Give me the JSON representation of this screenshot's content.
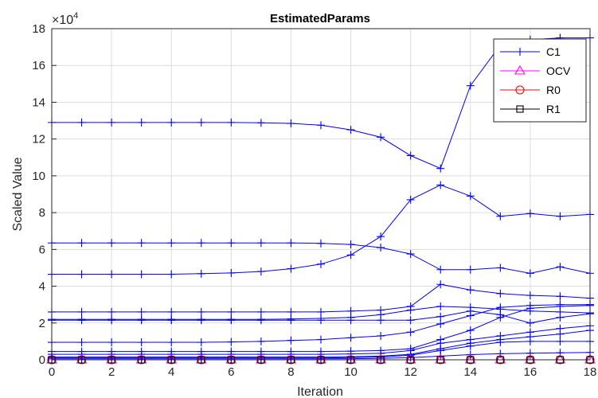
{
  "chart_data": {
    "type": "line",
    "title": "EstimatedParams",
    "xlabel": "Iteration",
    "ylabel": "Scaled Value",
    "exponent_label": "×10",
    "exponent_power": "4",
    "y_scale_factor": 10000,
    "xlim": [
      0,
      18
    ],
    "ylim": [
      0,
      18
    ],
    "xticks": [
      "0",
      "2",
      "4",
      "6",
      "8",
      "10",
      "12",
      "14",
      "16",
      "18"
    ],
    "yticks": [
      "0",
      "2",
      "4",
      "6",
      "8",
      "10",
      "12",
      "14",
      "16",
      "18"
    ],
    "grid": true,
    "legend_position": "top-right",
    "x": [
      0,
      1,
      2,
      3,
      4,
      5,
      6,
      7,
      8,
      9,
      10,
      11,
      12,
      13,
      14,
      15,
      16,
      17,
      18
    ],
    "series": [
      {
        "name": "C1",
        "color": "#0000ff",
        "marker": "plus",
        "curves": [
          [
            12.9,
            12.9,
            12.9,
            12.9,
            12.9,
            12.9,
            12.9,
            12.88,
            12.85,
            12.75,
            12.5,
            12.1,
            11.1,
            10.4,
            14.9,
            17.1,
            17.4,
            17.5,
            17.5
          ],
          [
            6.35,
            6.35,
            6.35,
            6.35,
            6.35,
            6.35,
            6.35,
            6.35,
            6.35,
            6.33,
            6.27,
            6.1,
            5.75,
            4.9,
            4.9,
            5.0,
            4.7,
            5.05,
            4.7
          ],
          [
            4.65,
            4.65,
            4.65,
            4.65,
            4.65,
            4.68,
            4.72,
            4.8,
            4.95,
            5.2,
            5.7,
            6.7,
            8.7,
            9.5,
            8.9,
            7.8,
            7.95,
            7.8,
            7.9
          ],
          [
            2.6,
            2.6,
            2.6,
            2.6,
            2.6,
            2.6,
            2.6,
            2.6,
            2.6,
            2.6,
            2.65,
            2.7,
            2.9,
            4.1,
            3.8,
            3.6,
            3.5,
            3.45,
            3.35
          ],
          [
            2.2,
            2.2,
            2.2,
            2.2,
            2.2,
            2.2,
            2.2,
            2.2,
            2.22,
            2.25,
            2.3,
            2.45,
            2.7,
            2.9,
            2.85,
            2.75,
            2.65,
            2.6,
            2.55
          ],
          [
            2.15,
            2.15,
            2.15,
            2.15,
            2.15,
            2.15,
            2.15,
            2.15,
            2.15,
            2.15,
            2.15,
            2.15,
            2.15,
            2.35,
            2.65,
            2.45,
            2.0,
            2.3,
            2.5
          ],
          [
            0.95,
            0.95,
            0.95,
            0.95,
            0.95,
            0.95,
            0.97,
            1.0,
            1.05,
            1.1,
            1.2,
            1.3,
            1.5,
            1.95,
            2.4,
            2.85,
            2.95,
            3.0,
            3.0
          ],
          [
            0.45,
            0.45,
            0.45,
            0.45,
            0.45,
            0.45,
            0.45,
            0.45,
            0.45,
            0.45,
            0.47,
            0.5,
            0.6,
            1.1,
            1.6,
            2.3,
            2.8,
            2.9,
            2.95
          ],
          [
            0.3,
            0.3,
            0.3,
            0.3,
            0.3,
            0.3,
            0.3,
            0.3,
            0.3,
            0.3,
            0.32,
            0.35,
            0.5,
            0.9,
            1.1,
            1.3,
            1.5,
            1.7,
            1.85
          ],
          [
            0.15,
            0.15,
            0.15,
            0.15,
            0.15,
            0.15,
            0.15,
            0.15,
            0.15,
            0.15,
            0.17,
            0.2,
            0.3,
            0.6,
            0.9,
            1.1,
            1.25,
            1.4,
            1.6
          ],
          [
            0.1,
            0.1,
            0.1,
            0.1,
            0.1,
            0.1,
            0.1,
            0.1,
            0.1,
            0.1,
            0.12,
            0.15,
            0.25,
            0.5,
            0.75,
            0.95,
            1.0,
            1.0,
            1.0
          ],
          [
            0.05,
            0.05,
            0.05,
            0.05,
            0.05,
            0.05,
            0.05,
            0.05,
            0.05,
            0.05,
            0.06,
            0.08,
            0.12,
            0.2,
            0.28,
            0.33,
            0.36,
            0.38,
            0.4
          ]
        ]
      },
      {
        "name": "OCV",
        "color": "#ff00ff",
        "marker": "triangle",
        "curves": [
          [
            0,
            0,
            0,
            0,
            0,
            0,
            0,
            0,
            0,
            0,
            0,
            0,
            0,
            0,
            0,
            0,
            0,
            0,
            0
          ]
        ]
      },
      {
        "name": "R0",
        "color": "#ff0000",
        "marker": "circle",
        "curves": [
          [
            0,
            0,
            0,
            0,
            0,
            0,
            0,
            0,
            0,
            0,
            0,
            0,
            0,
            0,
            0,
            0,
            0,
            0,
            0
          ]
        ]
      },
      {
        "name": "R1",
        "color": "#000000",
        "marker": "square",
        "curves": [
          [
            0,
            0,
            0,
            0,
            0,
            0,
            0,
            0,
            0,
            0,
            0,
            0,
            0,
            0,
            0,
            0,
            0,
            0,
            0
          ]
        ]
      }
    ]
  }
}
